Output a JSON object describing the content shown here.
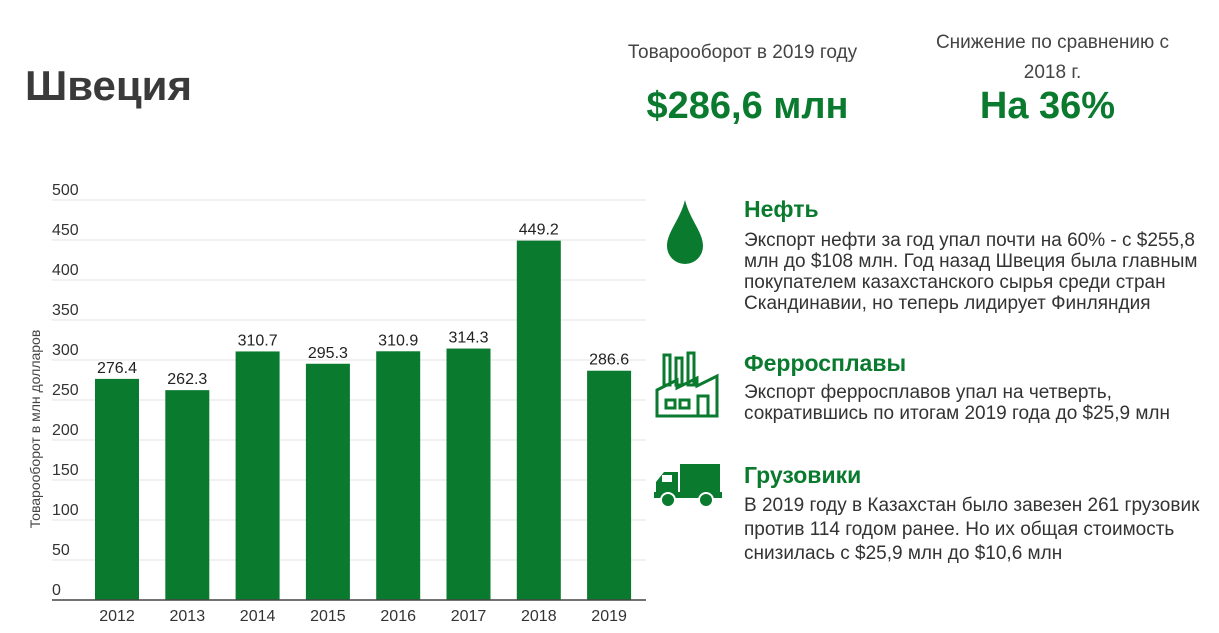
{
  "country": "Швеция",
  "stats": {
    "turnover_caption": "Товарооборот в 2019 году",
    "turnover_value": "$286,6 млн",
    "decline_caption": "Снижение по сравнению с 2018 г.",
    "decline_value": "На 36%"
  },
  "info": {
    "oil": {
      "icon": "oil-drop-icon",
      "title": "Нефть",
      "text": "Экспорт нефти за год упал почти на 60% - с $255,8 млн до $108 млн. Год назад Швеция была главным покупателем казахстанского сырья среди стран Скандинавии, но теперь лидирует Финляндия"
    },
    "ferro": {
      "icon": "factory-icon",
      "title": "Ферросплавы",
      "text": "Экспорт ферросплавов упал на четверть, сократившись по итогам 2019 года до $25,9 млн"
    },
    "trucks": {
      "icon": "truck-icon",
      "title": "Грузовики",
      "text": "В 2019 году в Казахстан было завезен 261 грузовик против 114 годом ранее. Но их общая стоимость снизилась с $25,9 млн до $10,6 млн"
    }
  },
  "colors": {
    "accent": "#0a7a2f",
    "bar": "#0a7a2f",
    "text": "#333333"
  },
  "chart_data": {
    "type": "bar",
    "categories": [
      "2012",
      "2013",
      "2014",
      "2015",
      "2016",
      "2017",
      "2018",
      "2019"
    ],
    "values": [
      276.4,
      262.3,
      310.7,
      295.3,
      310.9,
      314.3,
      449.2,
      286.6
    ],
    "value_labels": [
      "276.4",
      "262.3",
      "310.7",
      "295.3",
      "310.9",
      "314.3",
      "449.2",
      "286.6"
    ],
    "yticks": [
      0,
      50,
      100,
      150,
      200,
      250,
      300,
      350,
      400,
      450,
      500
    ],
    "ylim": [
      0,
      500
    ],
    "ylabel": "Товарооборот в млн долларов",
    "xlabel": "",
    "grid": true
  }
}
